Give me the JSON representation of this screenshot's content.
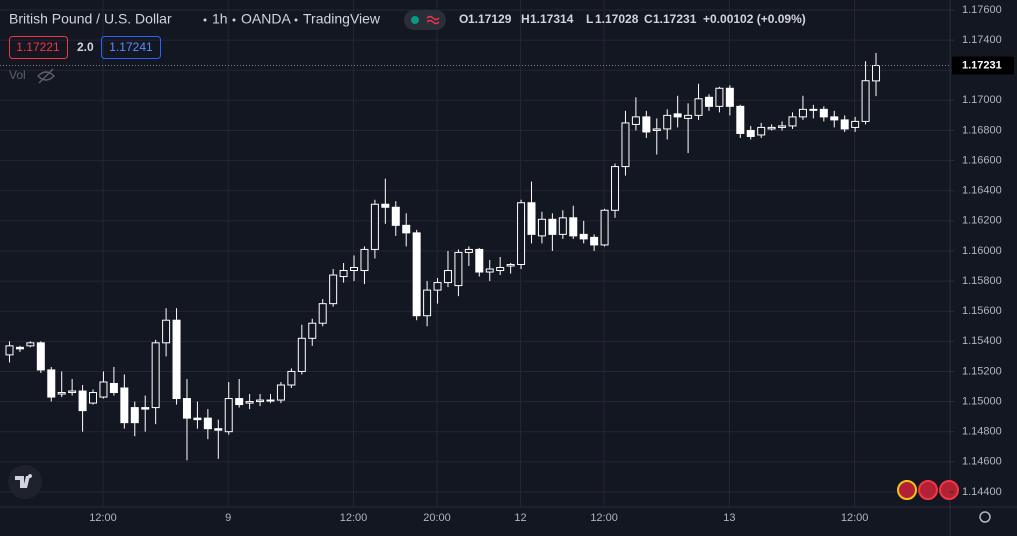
{
  "header": {
    "symbol": "British Pound / U.S. Dollar",
    "interval": "1h",
    "exchange": "OANDA",
    "platform": "TradingView",
    "ohlc_letters": [
      "O",
      "H",
      "L",
      "C"
    ],
    "change": "+0.00102 (+0.09%)",
    "sell": "1.17221",
    "spread": "2.0",
    "buy": "1.17241",
    "volume_label": "Vol"
  },
  "chart_data": {
    "type": "candlestick",
    "color": "#ffffff",
    "categories": [
      null,
      null,
      null,
      null,
      null,
      null,
      null,
      null,
      null,
      "12:00",
      null,
      null,
      null,
      null,
      null,
      null,
      null,
      null,
      null,
      null,
      null,
      "9",
      null,
      null,
      null,
      null,
      null,
      null,
      null,
      null,
      null,
      null,
      null,
      "12:00",
      null,
      null,
      null,
      null,
      null,
      null,
      null,
      "20:00",
      null,
      null,
      null,
      null,
      null,
      null,
      null,
      "12",
      null,
      null,
      null,
      null,
      null,
      null,
      null,
      "12:00",
      null,
      null,
      null,
      null,
      null,
      null,
      null,
      null,
      null,
      null,
      null,
      "13",
      null,
      null,
      null,
      null,
      null,
      null,
      null,
      null,
      null,
      null,
      null,
      "12:00",
      null,
      null
    ],
    "open": [
      1.1531,
      1.1536,
      1.1537,
      1.1539,
      1.1521,
      1.1505,
      1.1506,
      1.1507,
      1.1499,
      1.1503,
      1.1512,
      1.1509,
      1.1496,
      1.1496,
      1.1496,
      1.1539,
      1.1554,
      1.1502,
      1.1489,
      1.1489,
      1.1482,
      1.148,
      1.1502,
      1.1499,
      1.15,
      1.15005,
      1.1501,
      1.1511,
      1.152,
      1.1542,
      1.1552,
      1.1565,
      1.1583,
      1.1587,
      1.1587,
      1.1601,
      1.1631,
      1.1629,
      1.1617,
      1.1612,
      1.1557,
      1.1574,
      1.1579,
      1.1577,
      1.1599,
      1.1601,
      1.1586,
      1.1587,
      1.159,
      1.1591,
      1.1632,
      1.161,
      1.1621,
      1.1611,
      1.1622,
      1.1611,
      1.1609,
      1.1604,
      1.1627,
      1.1656,
      1.1684,
      1.1689,
      1.168,
      1.1681,
      1.1691,
      1.1688,
      1.169,
      1.1702,
      1.1696,
      1.1708,
      1.1696,
      1.168,
      1.1677,
      1.1681,
      1.1682,
      1.1683,
      1.1689,
      1.16935,
      1.1694,
      1.1689,
      1.1687,
      1.1682,
      1.1686,
      1.17129
    ],
    "high": [
      1.154,
      1.1537,
      1.154,
      1.154,
      1.1523,
      1.152,
      1.1515,
      1.1511,
      1.1508,
      1.152,
      1.1523,
      1.1518,
      1.15,
      1.1504,
      1.1541,
      1.1562,
      1.1562,
      1.1515,
      1.15,
      1.1495,
      1.1488,
      1.1513,
      1.1515,
      1.1505,
      1.1505,
      1.1505,
      1.1513,
      1.1522,
      1.1551,
      1.1555,
      1.1568,
      1.1588,
      1.1592,
      1.1597,
      1.1603,
      1.1634,
      1.1648,
      1.1633,
      1.1625,
      1.1614,
      1.158,
      1.1582,
      1.16,
      1.1601,
      1.1603,
      1.1602,
      1.1594,
      1.1596,
      1.1592,
      1.1634,
      1.1646,
      1.1626,
      1.1625,
      1.1627,
      1.163,
      1.162,
      1.1611,
      1.1628,
      1.1658,
      1.1693,
      1.1702,
      1.1693,
      1.1688,
      1.1694,
      1.1703,
      1.1698,
      1.1711,
      1.1704,
      1.1709,
      1.171,
      1.1697,
      1.1683,
      1.1685,
      1.1684,
      1.1686,
      1.1692,
      1.1703,
      1.1697,
      1.1696,
      1.1693,
      1.169,
      1.1689,
      1.1726,
      1.17314
    ],
    "low": [
      1.1526,
      1.1533,
      1.1536,
      1.1519,
      1.15,
      1.1503,
      1.1504,
      1.148,
      1.1498,
      1.1502,
      1.1504,
      1.1482,
      1.1477,
      1.148,
      1.1485,
      1.153,
      1.1498,
      1.1461,
      1.1482,
      1.1475,
      1.1462,
      1.1478,
      1.1496,
      1.1495,
      1.1497,
      1.1499,
      1.1499,
      1.1509,
      1.1518,
      1.1537,
      1.155,
      1.1563,
      1.1579,
      1.158,
      1.1578,
      1.1595,
      1.1618,
      1.161,
      1.1603,
      1.1554,
      1.155,
      1.1565,
      1.1576,
      1.157,
      1.159,
      1.1583,
      1.158,
      1.1584,
      1.1585,
      1.1588,
      1.1605,
      1.1605,
      1.16,
      1.1608,
      1.1608,
      1.1605,
      1.16,
      1.1603,
      1.1622,
      1.165,
      1.168,
      1.1675,
      1.1664,
      1.1674,
      1.1682,
      1.1665,
      1.1687,
      1.1693,
      1.1692,
      1.169,
      1.1675,
      1.1674,
      1.1675,
      1.168,
      1.168,
      1.1681,
      1.1687,
      1.1688,
      1.1686,
      1.1682,
      1.1679,
      1.1679,
      1.1684,
      1.17028
    ],
    "close": [
      1.1537,
      1.1535,
      1.1539,
      1.1521,
      1.1503,
      1.1506,
      1.1507,
      1.1494,
      1.1506,
      1.1513,
      1.1506,
      1.1486,
      1.1486,
      1.1495,
      1.1539,
      1.1554,
      1.1502,
      1.1489,
      1.1488,
      1.1482,
      1.1481,
      1.1502,
      1.1498,
      1.15,
      1.1501,
      1.1501,
      1.1511,
      1.152,
      1.1542,
      1.1552,
      1.1565,
      1.1584,
      1.1587,
      1.1589,
      1.1601,
      1.1631,
      1.1629,
      1.1617,
      1.1612,
      1.1557,
      1.1574,
      1.1579,
      1.1587,
      1.1599,
      1.1601,
      1.1586,
      1.1588,
      1.1589,
      1.1591,
      1.1632,
      1.1611,
      1.1621,
      1.1611,
      1.1622,
      1.161,
      1.1608,
      1.1604,
      1.1627,
      1.1656,
      1.1685,
      1.1689,
      1.1679,
      1.1681,
      1.169,
      1.1689,
      1.169,
      1.1701,
      1.1696,
      1.1708,
      1.1696,
      1.1678,
      1.1676,
      1.1682,
      1.1682,
      1.1683,
      1.1689,
      1.1694,
      1.1694,
      1.1689,
      1.1687,
      1.1681,
      1.1686,
      1.1713,
      1.17231
    ],
    "ylim": [
      1.143,
      1.17666
    ],
    "yticks": [
      {
        "value": 1.144,
        "label": "1.14400"
      },
      {
        "value": 1.146,
        "label": "1.14600"
      },
      {
        "value": 1.148,
        "label": "1.14800"
      },
      {
        "value": 1.15,
        "label": "1.15000"
      },
      {
        "value": 1.152,
        "label": "1.15200"
      },
      {
        "value": 1.154,
        "label": "1.15400"
      },
      {
        "value": 1.156,
        "label": "1.15600"
      },
      {
        "value": 1.158,
        "label": "1.15800"
      },
      {
        "value": 1.16,
        "label": "1.16000"
      },
      {
        "value": 1.162,
        "label": "1.16200"
      },
      {
        "value": 1.164,
        "label": "1.16400"
      },
      {
        "value": 1.166,
        "label": "1.16600"
      },
      {
        "value": 1.168,
        "label": "1.16800"
      },
      {
        "value": 1.17,
        "label": "1.17000"
      },
      {
        "value": 1.172,
        "label": "1.17200"
      },
      {
        "value": 1.174,
        "label": "1.17400"
      },
      {
        "value": 1.176,
        "label": "1.17600"
      }
    ],
    "grid": true
  }
}
